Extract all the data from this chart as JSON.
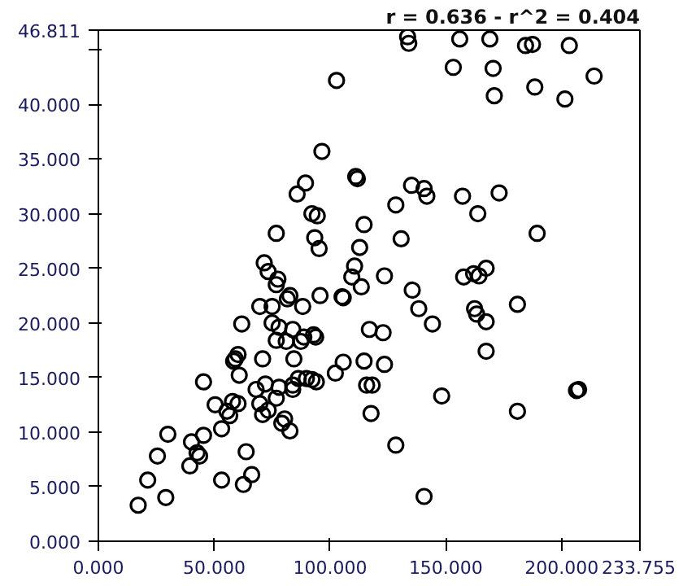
{
  "chart_data": {
    "type": "scatter",
    "marker": "circle",
    "grid": false,
    "annotations": [
      "r = 0.636 - r^2 = 0.404"
    ],
    "xlim": [
      0,
      233.755
    ],
    "ylim": [
      0,
      46.811
    ],
    "xticks": [
      {
        "value": 0,
        "label": "0.000"
      },
      {
        "value": 50,
        "label": "50.000"
      },
      {
        "value": 100,
        "label": "100.000"
      },
      {
        "value": 150,
        "label": "150.000"
      },
      {
        "value": 200,
        "label": "200.000"
      },
      {
        "value": 233.755,
        "label": "233.755"
      }
    ],
    "yticks": [
      {
        "value": 0,
        "label": "0.000"
      },
      {
        "value": 5,
        "label": "5.000"
      },
      {
        "value": 10,
        "label": "10.000"
      },
      {
        "value": 15,
        "label": "15.000"
      },
      {
        "value": 20,
        "label": "20.000"
      },
      {
        "value": 25,
        "label": "25.000"
      },
      {
        "value": 30,
        "label": "30.000"
      },
      {
        "value": 35,
        "label": "35.000"
      },
      {
        "value": 40,
        "label": "40.000"
      },
      {
        "value": 45,
        "label": null
      },
      {
        "value": 46.811,
        "label": "46.811"
      }
    ],
    "series": [
      {
        "color": "#000000",
        "x": [
          17.2,
          29.1,
          21.3,
          25.5,
          30.0,
          39.5,
          40.2,
          42.6,
          43.7,
          45.4,
          45.4,
          53.2,
          53.2,
          50.4,
          55.5,
          56.7,
          57.9,
          60.3,
          62.6,
          66.2,
          63.8,
          59.1,
          60.3,
          58.4,
          60.8,
          61.9,
          70.9,
          68.1,
          69.7,
          72.1,
          70.9,
          73.3,
          76.8,
          78.0,
          79.2,
          80.4,
          82.7,
          83.9,
          83.9,
          86.3,
          89.8,
          92.2,
          94.1,
          84.4,
          69.7,
          75.0,
          75.0,
          78.0,
          76.8,
          81.1,
          83.9,
          87.4,
          88.7,
          92.9,
          93.8,
          81.6,
          82.7,
          88.2,
          95.7,
          76.8,
          102.3,
          105.7,
          105.7,
          113.5,
          114.7,
          117.0,
          115.8,
          118.2,
          117.7,
          102.8,
          96.5,
          89.4,
          85.8,
          92.2,
          94.5,
          111.1,
          111.8,
          114.7,
          76.8,
          93.4,
          95.3,
          112.8,
          71.6,
          73.3,
          77.5,
          110.6,
          109.4,
          105.2,
          133.5,
          134.0,
          156.0,
          169.0,
          184.4,
          187.4,
          203.3,
          153.2,
          170.4,
          214.0,
          188.4,
          170.9,
          201.4,
          135.2,
          140.6,
          141.8,
          128.4,
          157.2,
          173.0,
          163.8,
          130.7,
          189.4,
          123.5,
          135.5,
          157.7,
          162.0,
          164.3,
          167.4,
          138.3,
          144.2,
          162.4,
          163.3,
          167.4,
          180.9,
          167.4,
          122.9,
          123.5,
          148.2,
          180.9,
          206.4,
          207.3,
          128.4,
          140.6
        ],
        "values": [
          3.3,
          4.0,
          5.6,
          7.8,
          9.8,
          6.9,
          9.1,
          8.1,
          7.8,
          9.7,
          14.6,
          5.6,
          10.3,
          12.5,
          11.9,
          11.5,
          12.8,
          12.6,
          5.2,
          6.1,
          8.2,
          16.7,
          17.1,
          16.5,
          15.2,
          19.9,
          16.7,
          13.9,
          12.6,
          14.4,
          11.6,
          12.0,
          13.1,
          14.1,
          10.8,
          11.2,
          10.1,
          13.9,
          14.3,
          14.9,
          14.9,
          14.8,
          14.6,
          16.7,
          21.5,
          21.5,
          20.0,
          19.6,
          18.4,
          18.3,
          19.4,
          18.3,
          18.7,
          18.9,
          18.7,
          22.2,
          22.5,
          21.5,
          22.5,
          23.5,
          15.4,
          16.4,
          22.3,
          23.3,
          16.5,
          19.4,
          14.3,
          14.3,
          11.7,
          42.2,
          35.7,
          32.8,
          31.8,
          30.0,
          29.8,
          33.4,
          33.2,
          29.0,
          28.2,
          27.8,
          26.8,
          26.9,
          25.5,
          24.7,
          24.0,
          25.2,
          24.2,
          22.4,
          46.2,
          45.6,
          46.0,
          46.0,
          45.4,
          45.5,
          45.4,
          43.4,
          43.3,
          42.6,
          41.6,
          40.8,
          40.5,
          32.6,
          32.3,
          31.6,
          30.8,
          31.6,
          31.9,
          30.0,
          27.7,
          28.2,
          24.3,
          23.0,
          24.2,
          24.5,
          24.3,
          25.0,
          21.3,
          19.9,
          21.3,
          20.8,
          20.1,
          21.7,
          17.4,
          19.1,
          16.2,
          13.3,
          11.9,
          13.8,
          13.9,
          8.8,
          4.1
        ]
      }
    ]
  }
}
